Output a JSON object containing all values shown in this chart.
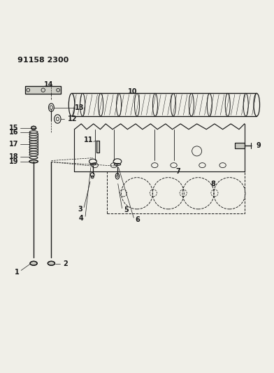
{
  "title": "91158 2300",
  "bg_color": "#f0efe8",
  "line_color": "#1a1a1a",
  "figsize": [
    3.92,
    5.33
  ],
  "dpi": 100
}
